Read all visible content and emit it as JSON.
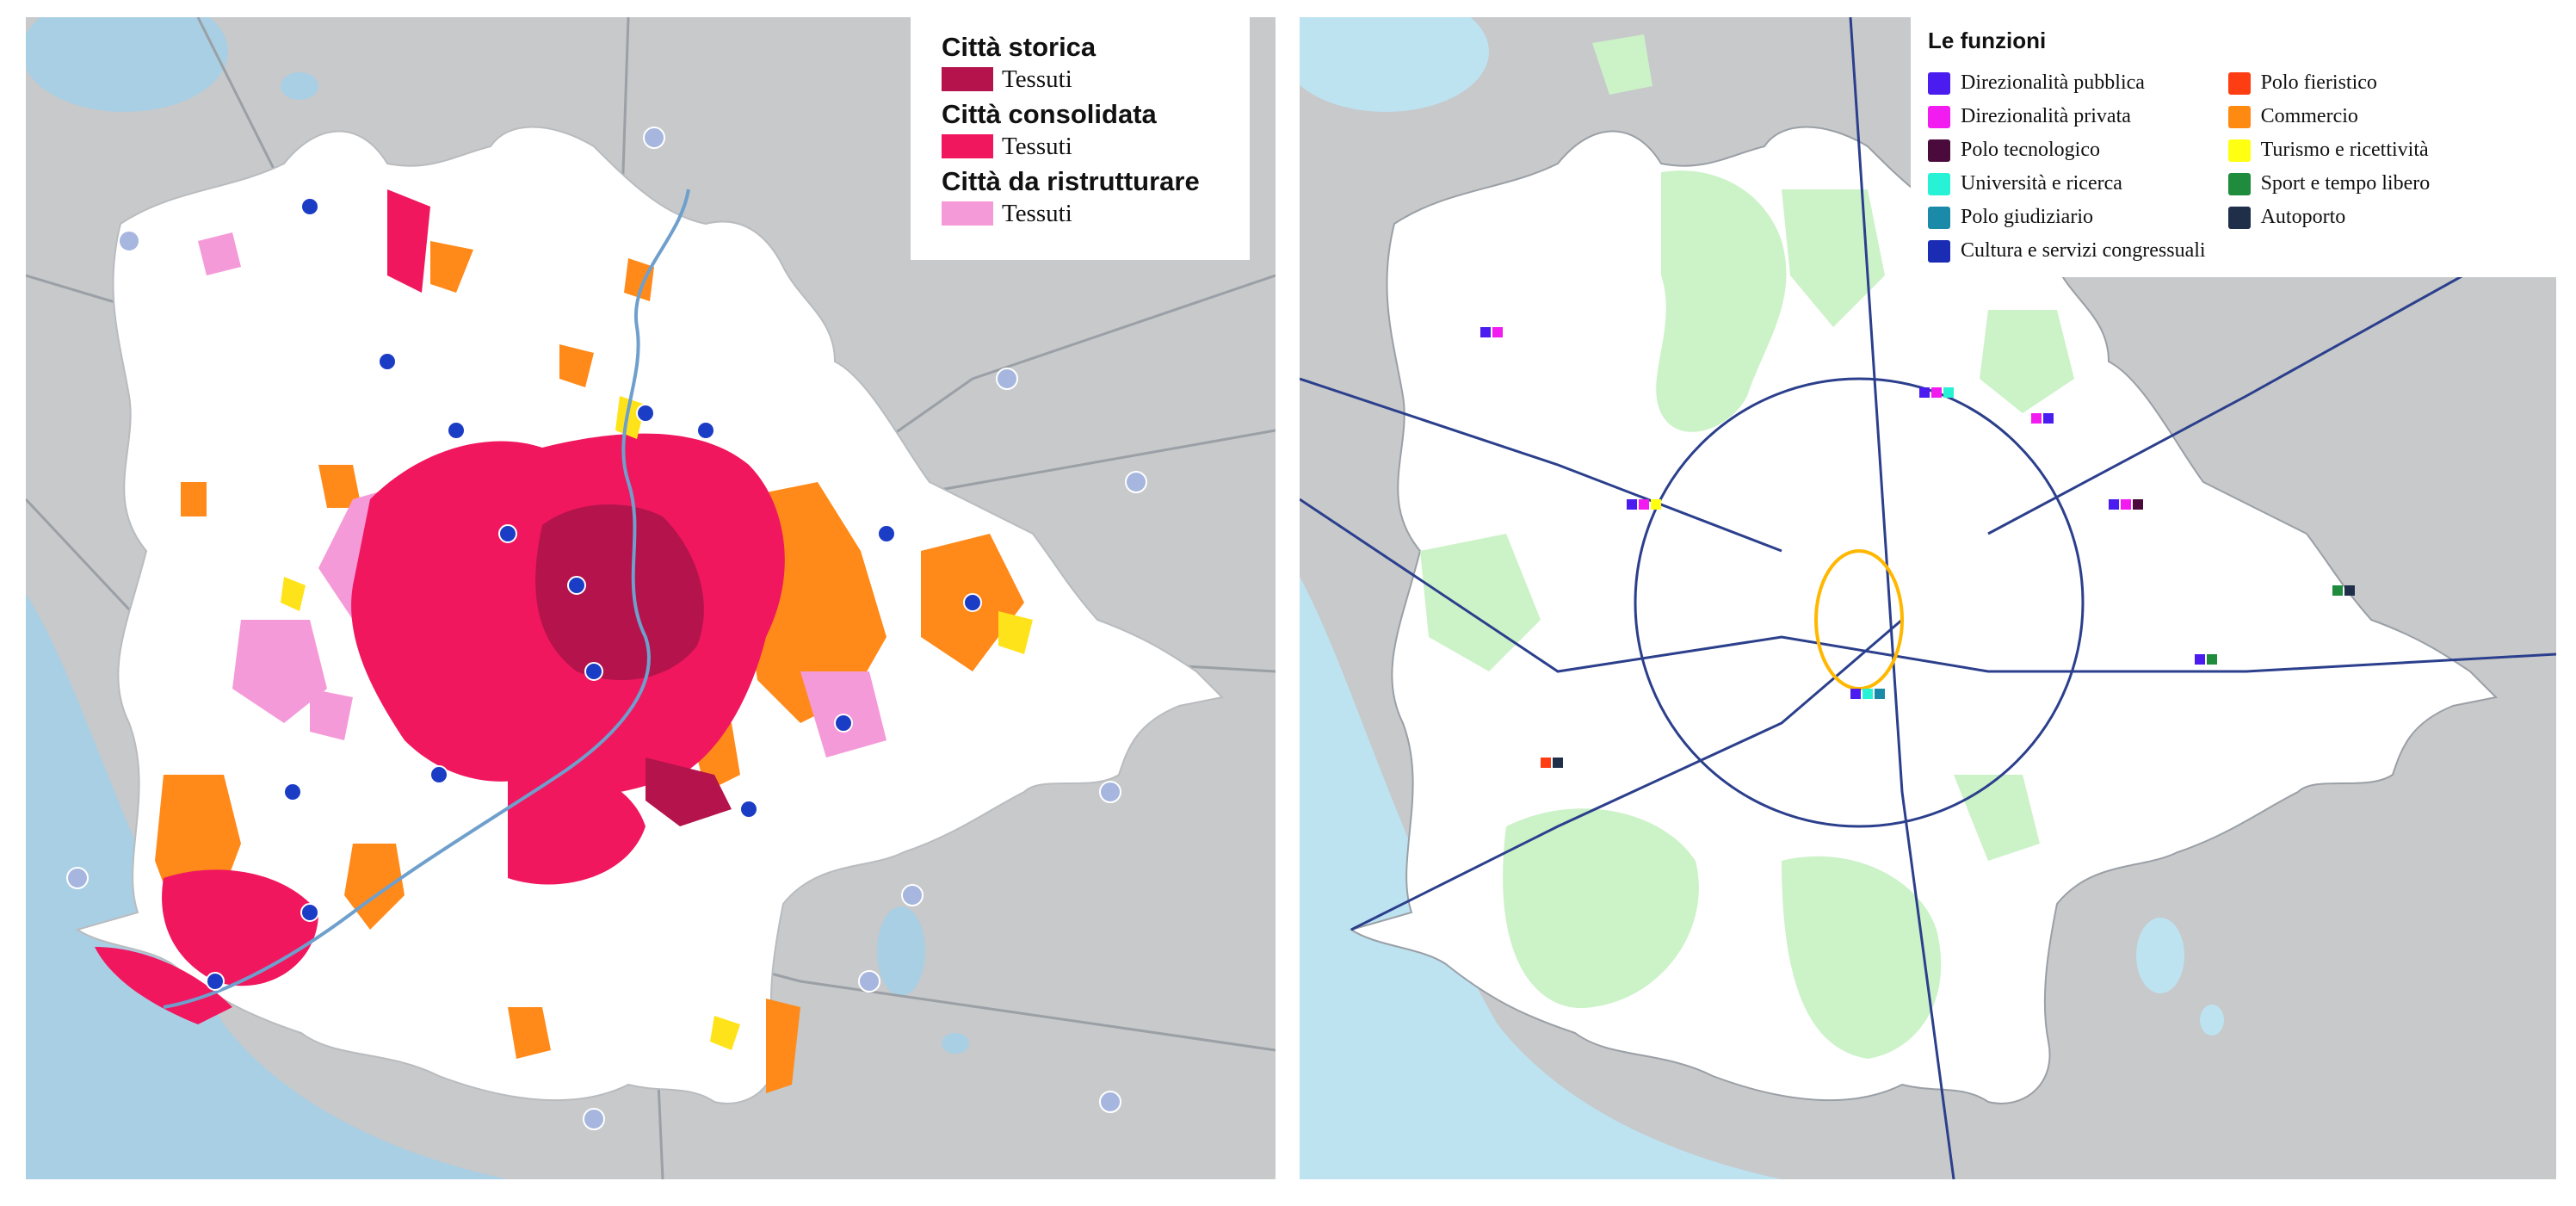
{
  "left_map": {
    "legend": {
      "groups": [
        {
          "title": "Città storica",
          "item_label": "Tessuti",
          "color": "#b5134b"
        },
        {
          "title": "Città consolidata",
          "item_label": "Tessuti",
          "color": "#f0175f"
        },
        {
          "title": "Città da ristrutturare",
          "item_label": "Tessuti",
          "color": "#f59ad8"
        }
      ]
    },
    "colors": {
      "background": "#c7c9cb",
      "city_area": "#ffffff",
      "sea": "#a9cfe4",
      "expansion": "#ff8a1a",
      "yellow": "#ffe31a",
      "markers": "#1b3cc4"
    }
  },
  "right_map": {
    "legend": {
      "title": "Le funzioni",
      "column1": [
        {
          "label": "Direzionalità pubblica",
          "color": "#4a1cf0"
        },
        {
          "label": "Direzionalità privata",
          "color": "#f21bf0"
        },
        {
          "label": "Polo tecnologico",
          "color": "#4b0a3c"
        },
        {
          "label": "Università e ricerca",
          "color": "#27f2d6"
        },
        {
          "label": "Polo giudiziario",
          "color": "#1b8aa8"
        },
        {
          "label": "Cultura e servizi congressuali",
          "color": "#1a2cb4"
        }
      ],
      "column2": [
        {
          "label": "Polo fieristico",
          "color": "#ff3d12"
        },
        {
          "label": "Commercio",
          "color": "#ff8a12"
        },
        {
          "label": "Turismo e ricettività",
          "color": "#ffff12"
        },
        {
          "label": "Sport e tempo libero",
          "color": "#1e8c3c"
        },
        {
          "label": "Autoporto",
          "color": "#1f2f4a"
        }
      ]
    },
    "colors": {
      "background": "#c7c9cb",
      "city_area": "#ffffff",
      "green": "#ccf2c8",
      "sea": "#bde3f1",
      "rail": "#2b3f8c"
    }
  }
}
